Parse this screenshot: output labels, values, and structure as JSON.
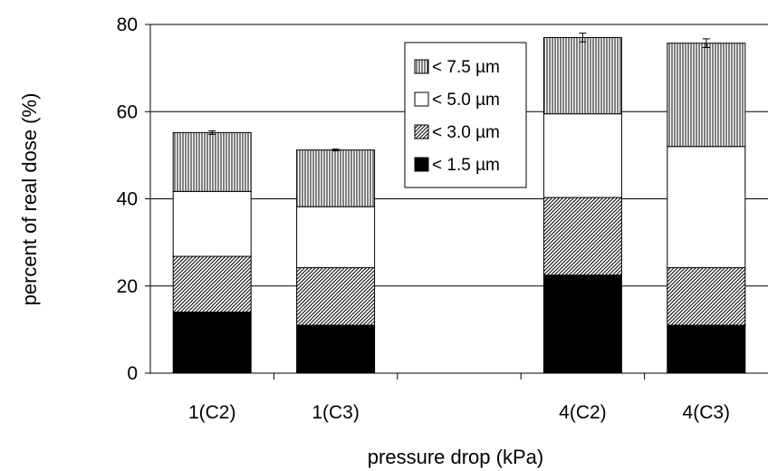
{
  "chart_data": {
    "type": "bar",
    "stacked": true,
    "xlabel": "pressure drop (kPa)",
    "ylabel": "percent of real dose (%)",
    "ylim": [
      0,
      80
    ],
    "yticks": [
      0,
      20,
      40,
      60,
      80
    ],
    "grid": "horizontal",
    "legend_position": "top-center",
    "slots": [
      "1(C2)",
      "1(C3)",
      "",
      "4(C2)",
      "4(C3)"
    ],
    "categories": [
      "1(C2)",
      "1(C3)",
      "4(C2)",
      "4(C3)"
    ],
    "series": [
      {
        "name": "< 1.5 µm",
        "fill": "solid-black",
        "values": [
          14.0,
          11.0,
          22.5,
          11.0
        ]
      },
      {
        "name": "< 3.0 µm",
        "fill": "diagonal-hatch",
        "values": [
          12.8,
          13.2,
          17.8,
          13.2
        ]
      },
      {
        "name": "< 5.0 µm",
        "fill": "white",
        "values": [
          14.9,
          14.0,
          19.2,
          27.8
        ]
      },
      {
        "name": "< 7.5 µm",
        "fill": "vertical-hatch",
        "values": [
          13.5,
          13.0,
          17.5,
          23.7
        ]
      }
    ],
    "totals": [
      55.2,
      51.2,
      77.0,
      75.7
    ],
    "error": [
      0.4,
      0.2,
      1.0,
      1.0
    ],
    "legend_order": [
      3,
      2,
      1,
      0
    ]
  }
}
